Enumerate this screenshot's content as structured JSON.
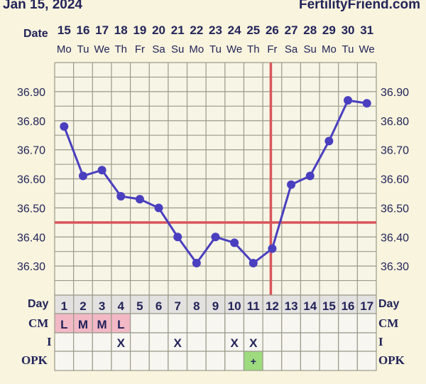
{
  "header": {
    "date": "Jan 15, 2024",
    "site": "FertilityFriend.com"
  },
  "labels": {
    "date": "Date",
    "day": "Day",
    "cm": "CM",
    "i": "I",
    "opk": "OPK"
  },
  "chart_data": {
    "type": "line",
    "dates": [
      "15",
      "16",
      "17",
      "18",
      "19",
      "20",
      "21",
      "22",
      "23",
      "24",
      "25",
      "26",
      "27",
      "28",
      "29",
      "30",
      "31"
    ],
    "weekdays": [
      "Mo",
      "Tu",
      "We",
      "Th",
      "Fr",
      "Sa",
      "Su",
      "Mo",
      "Tu",
      "We",
      "Th",
      "Fr",
      "Sa",
      "Su",
      "Mo",
      "Tu",
      "We"
    ],
    "days": [
      "1",
      "2",
      "3",
      "4",
      "5",
      "6",
      "7",
      "8",
      "9",
      "10",
      "11",
      "12",
      "13",
      "14",
      "15",
      "16",
      "17"
    ],
    "temperatures": [
      36.78,
      36.61,
      36.63,
      36.54,
      36.53,
      36.5,
      36.4,
      36.31,
      36.4,
      36.38,
      36.31,
      36.36,
      36.58,
      36.61,
      36.73,
      36.87,
      36.86
    ],
    "ylim": [
      36.2,
      37.0
    ],
    "yticks": [
      "36.90",
      "36.80",
      "36.70",
      "36.60",
      "36.50",
      "36.40",
      "36.30"
    ],
    "coverline": 36.45,
    "ovulation_day": 12,
    "cm": [
      "L",
      "M",
      "M",
      "L",
      "",
      "",
      "",
      "",
      "",
      "",
      "",
      "",
      "",
      "",
      "",
      "",
      ""
    ],
    "intercourse": [
      "",
      "",
      "",
      "X",
      "",
      "",
      "X",
      "",
      "",
      "X",
      "X",
      "",
      "",
      "",
      "",
      "",
      ""
    ],
    "opk": [
      "",
      "",
      "",
      "",
      "",
      "",
      "",
      "",
      "",
      "",
      "+",
      "",
      "",
      "",
      "",
      "",
      ""
    ],
    "colors": {
      "line": "#4a3fbf",
      "coverline": "#d9555a",
      "cm": "#f2b8c6",
      "opk_positive": "#9ddb7e",
      "grid": "#9a9a8a",
      "text": "#23235a"
    }
  }
}
